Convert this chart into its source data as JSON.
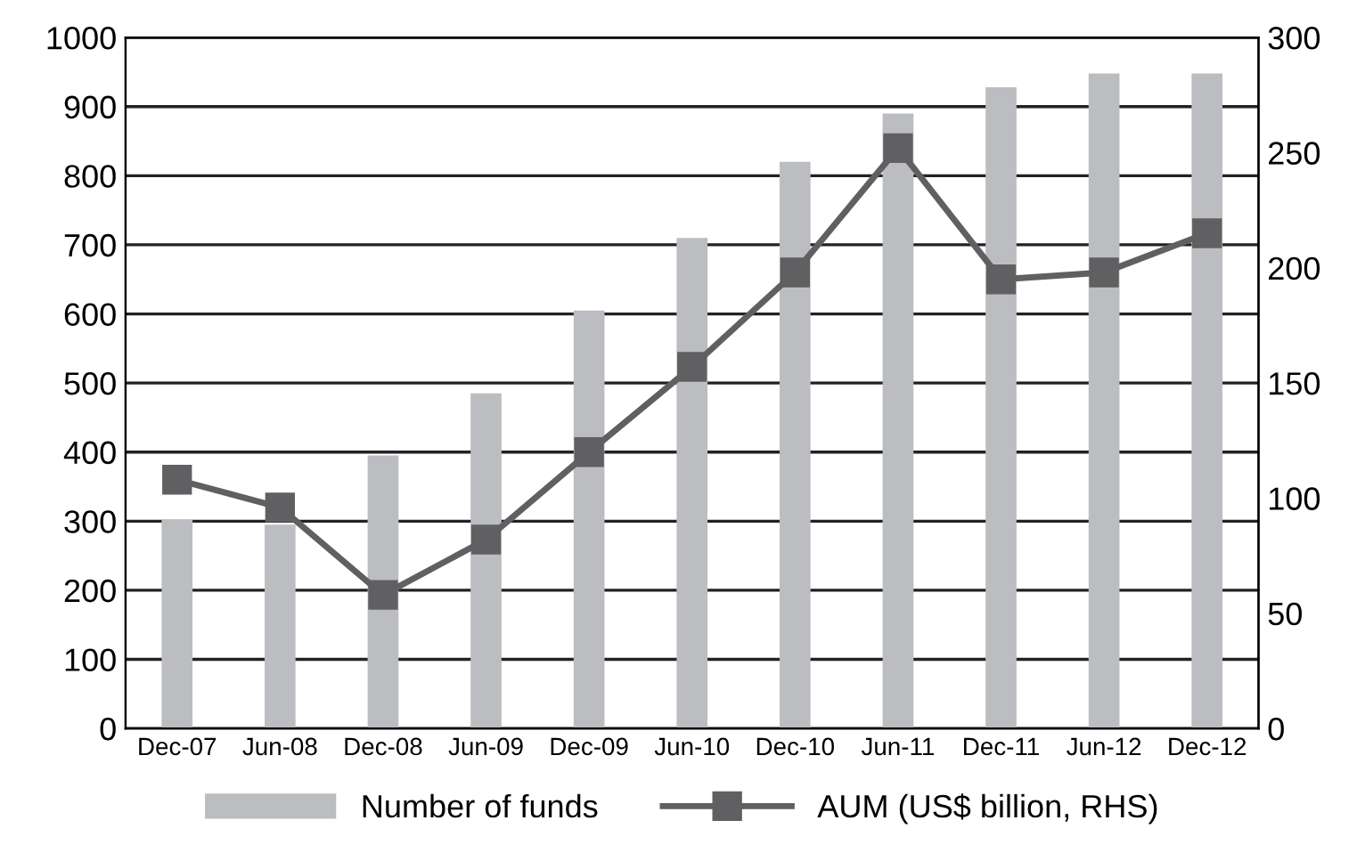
{
  "chart_data": {
    "type": "bar",
    "categories": [
      "Dec-07",
      "Jun-08",
      "Dec-08",
      "Jun-09",
      "Dec-09",
      "Jun-10",
      "Dec-10",
      "Jun-11",
      "Dec-11",
      "Jun-12",
      "Dec-12"
    ],
    "series": [
      {
        "name": "Number of funds",
        "color": "#bcbdc0",
        "values": [
          302,
          295,
          395,
          485,
          605,
          710,
          820,
          890,
          928,
          948,
          948
        ]
      },
      {
        "name": "AUM (US$ billion, RHS)",
        "type": "line",
        "axis": "y2",
        "color": "#606062",
        "values": [
          108,
          96,
          58,
          82,
          120,
          157,
          198,
          252,
          195,
          198,
          215
        ]
      }
    ],
    "ylim": [
      0,
      1000
    ],
    "yticks": [
      0,
      100,
      200,
      300,
      400,
      500,
      600,
      700,
      800,
      900,
      1000
    ],
    "y2lim": [
      0,
      300
    ],
    "y2ticks": [
      0,
      50,
      100,
      150,
      200,
      250,
      300
    ],
    "grid": "y",
    "legend": "bottom",
    "marker": "square",
    "line_style": "solid"
  }
}
